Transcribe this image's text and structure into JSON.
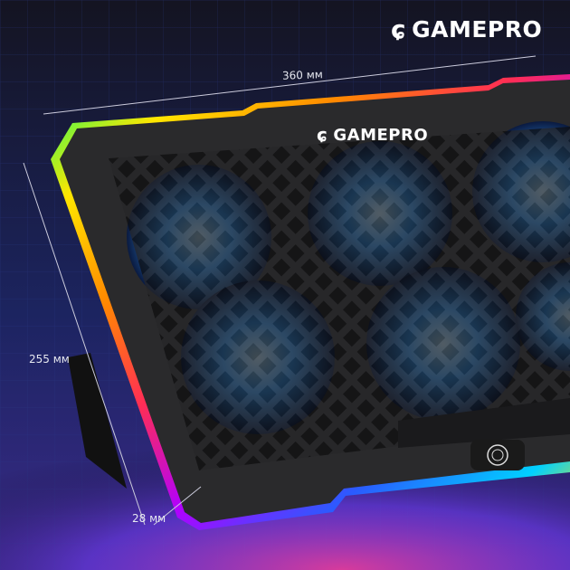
{
  "brand": {
    "logo_text": "GAMEPRO",
    "device_logo_text": "GAMEPRO"
  },
  "dimensions": {
    "width": "360 мм",
    "depth": "255 мм",
    "height": "28 мм"
  },
  "colors": {
    "background": "#141726",
    "panel": "#2a2a2c",
    "fan_glow": "#3aa0ff",
    "rainbow": [
      "#ffe600",
      "#ff8a00",
      "#ff2d55",
      "#b100ff",
      "#2a5bff",
      "#00d0ff",
      "#00ff6a"
    ]
  },
  "icons": [
    "gamepro-logo-icon",
    "fingerprint-button-icon"
  ]
}
